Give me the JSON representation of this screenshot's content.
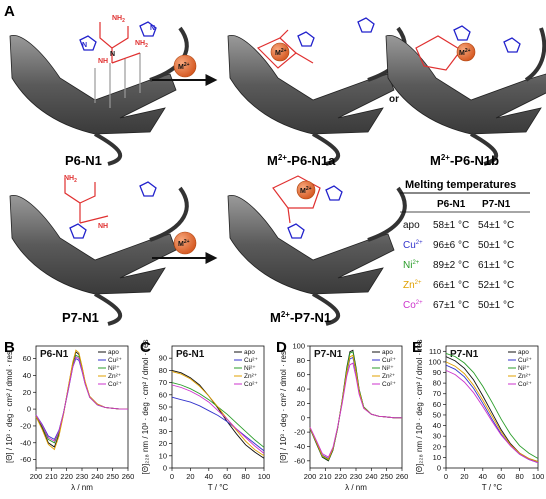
{
  "panels": {
    "A": "A",
    "B": "B",
    "C": "C",
    "D": "D",
    "E": "E"
  },
  "diagram": {
    "reagent_label": "M",
    "reagent_sup": "2+",
    "or_label": "or",
    "compounds": [
      {
        "key": "p6n1",
        "label": "P6-N1",
        "sup": ""
      },
      {
        "key": "m_p6n1a",
        "label": "-P6-N1a",
        "sup": "2+",
        "prefix": "M"
      },
      {
        "key": "m_p6n1b",
        "label": "-P6-N1b",
        "sup": "2+",
        "prefix": "M"
      },
      {
        "key": "p7n1",
        "label": "P7-N1",
        "sup": ""
      },
      {
        "key": "m_p7n1",
        "label": "-P7-N1",
        "sup": "2+",
        "prefix": "M"
      }
    ],
    "atoms": {
      "nh2": "NH",
      "nh2_sub": "2",
      "nh": "NH",
      "n": "N",
      "h2n": "H",
      "h2n_sub": "2",
      "h2n_n": "N",
      "h": "H"
    }
  },
  "melting_table": {
    "title": "Melting temperatures",
    "columns": [
      "",
      "P6-N1",
      "P7-N1"
    ],
    "rows": [
      {
        "label": "apo",
        "ion": "",
        "sup": "",
        "color": "#111111",
        "p6": "58±1 °C",
        "p7": "54±1 °C"
      },
      {
        "label": "Cu",
        "ion": "Cu",
        "sup": "2+",
        "color": "#3333cc",
        "p6": "96±6 °C",
        "p7": "50±1 °C"
      },
      {
        "label": "Ni",
        "ion": "Ni",
        "sup": "2+",
        "color": "#2a9d2a",
        "p6": "89±2 °C",
        "p7": "61±1 °C"
      },
      {
        "label": "Zn",
        "ion": "Zn",
        "sup": "2+",
        "color": "#e0a000",
        "p6": "66±1 °C",
        "p7": "52±1 °C"
      },
      {
        "label": "Co",
        "ion": "Co",
        "sup": "2+",
        "color": "#cc33cc",
        "p6": "67±1 °C",
        "p7": "50±1 °C"
      }
    ]
  },
  "colors": {
    "apo": "#111111",
    "Cu": "#3333cc",
    "Ni": "#2a9d2a",
    "Zn": "#e0a000",
    "Co": "#cc33cc",
    "metal": "#e06a35",
    "amine": "#e03030",
    "imidazole": "#2222cc"
  },
  "chart_data": [
    {
      "id": "B",
      "type": "line",
      "title": "P6-N1",
      "xlabel": "λ / nm",
      "ylabel": "[Θ] / 10³ · deg · cm² / dmol · res",
      "xlim": [
        200,
        260
      ],
      "ylim": [
        -70,
        75
      ],
      "xticks": [
        200,
        210,
        220,
        230,
        240,
        250,
        260
      ],
      "yticks": [
        -60,
        -40,
        -20,
        0,
        20,
        40,
        60
      ],
      "legend": [
        "apo",
        "Cu²⁺",
        "Ni²⁺",
        "Zn²⁺",
        "Co²⁺"
      ],
      "series": [
        {
          "name": "apo",
          "x": [
            200,
            204,
            208,
            212,
            215,
            218,
            221,
            224,
            226,
            228,
            230,
            232,
            235,
            240,
            245,
            250,
            255,
            260
          ],
          "y": [
            -8,
            -22,
            -40,
            -45,
            -30,
            -5,
            25,
            55,
            68,
            65,
            50,
            32,
            15,
            6,
            2,
            1,
            0,
            0
          ]
        },
        {
          "name": "Cu²⁺",
          "x": [
            200,
            204,
            208,
            212,
            215,
            218,
            221,
            224,
            226,
            228,
            230,
            232,
            235,
            240,
            245,
            250,
            255,
            260
          ],
          "y": [
            -7,
            -18,
            -32,
            -36,
            -25,
            -4,
            22,
            50,
            60,
            58,
            45,
            30,
            14,
            5,
            2,
            1,
            0,
            0
          ]
        },
        {
          "name": "Ni²⁺",
          "x": [
            200,
            204,
            208,
            212,
            215,
            218,
            221,
            224,
            226,
            228,
            230,
            232,
            235,
            240,
            245,
            250,
            255,
            260
          ],
          "y": [
            -8,
            -20,
            -36,
            -40,
            -27,
            -4,
            24,
            52,
            64,
            62,
            48,
            31,
            14,
            5,
            2,
            1,
            0,
            0
          ]
        },
        {
          "name": "Zn²⁺",
          "x": [
            200,
            204,
            208,
            212,
            215,
            218,
            221,
            224,
            226,
            228,
            230,
            232,
            235,
            240,
            245,
            250,
            255,
            260
          ],
          "y": [
            -9,
            -24,
            -42,
            -48,
            -32,
            -6,
            26,
            56,
            70,
            67,
            51,
            33,
            15,
            6,
            2,
            1,
            0,
            0
          ]
        },
        {
          "name": "Co²⁺",
          "x": [
            200,
            204,
            208,
            212,
            215,
            218,
            221,
            224,
            226,
            228,
            230,
            232,
            235,
            240,
            245,
            250,
            255,
            260
          ],
          "y": [
            -7,
            -19,
            -34,
            -38,
            -26,
            -4,
            23,
            50,
            62,
            60,
            46,
            30,
            14,
            5,
            2,
            1,
            0,
            0
          ]
        }
      ]
    },
    {
      "id": "C",
      "type": "line",
      "title": "P6-N1",
      "xlabel": "T / °C",
      "ylabel": "[Θ]₂₂₈ nm / 10³ · deg · cm² / dmol · res",
      "xlim": [
        0,
        100
      ],
      "ylim": [
        0,
        100
      ],
      "xticks": [
        0,
        20,
        40,
        60,
        80,
        100
      ],
      "yticks": [
        0,
        10,
        20,
        30,
        40,
        50,
        60,
        70,
        80,
        90
      ],
      "legend": [
        "apo",
        "Cu²⁺",
        "Ni²⁺",
        "Zn²⁺",
        "Co²⁺"
      ],
      "series": [
        {
          "name": "apo",
          "x": [
            0,
            10,
            20,
            30,
            40,
            50,
            60,
            70,
            80,
            90,
            100
          ],
          "y": [
            80,
            78,
            74,
            68,
            59,
            49,
            38,
            28,
            19,
            13,
            8
          ]
        },
        {
          "name": "Cu²⁺",
          "x": [
            0,
            10,
            20,
            30,
            40,
            50,
            60,
            70,
            80,
            90,
            100
          ],
          "y": [
            58,
            56,
            54,
            51,
            47,
            43,
            38,
            32,
            26,
            20,
            14
          ]
        },
        {
          "name": "Ni²⁺",
          "x": [
            0,
            10,
            20,
            30,
            40,
            50,
            60,
            70,
            80,
            90,
            100
          ],
          "y": [
            70,
            68,
            65,
            61,
            56,
            50,
            44,
            37,
            30,
            23,
            17
          ]
        },
        {
          "name": "Zn²⁺",
          "x": [
            0,
            10,
            20,
            30,
            40,
            50,
            60,
            70,
            80,
            90,
            100
          ],
          "y": [
            79,
            77,
            73,
            67,
            59,
            50,
            40,
            31,
            22,
            15,
            10
          ]
        },
        {
          "name": "Co²⁺",
          "x": [
            0,
            10,
            20,
            30,
            40,
            50,
            60,
            70,
            80,
            90,
            100
          ],
          "y": [
            68,
            66,
            63,
            59,
            54,
            47,
            40,
            32,
            25,
            18,
            12
          ]
        }
      ]
    },
    {
      "id": "D",
      "type": "line",
      "title": "P7-N1",
      "xlabel": "λ / nm",
      "ylabel": "[Θ] / 10³ · deg · cm² / dmol · res",
      "xlim": [
        200,
        260
      ],
      "ylim": [
        -70,
        100
      ],
      "xticks": [
        200,
        210,
        220,
        230,
        240,
        250,
        260
      ],
      "yticks": [
        -60,
        -40,
        -20,
        0,
        20,
        40,
        60,
        80,
        100
      ],
      "legend": [
        "apo",
        "Cu²⁺",
        "Ni²⁺",
        "Zn²⁺",
        "Co²⁺"
      ],
      "series": [
        {
          "name": "apo",
          "x": [
            200,
            204,
            208,
            212,
            215,
            218,
            221,
            224,
            226,
            228,
            230,
            232,
            235,
            240,
            245,
            250,
            255,
            260
          ],
          "y": [
            -15,
            -35,
            -55,
            -60,
            -45,
            -15,
            25,
            70,
            92,
            94,
            70,
            40,
            15,
            5,
            2,
            1,
            0,
            0
          ]
        },
        {
          "name": "Cu²⁺",
          "x": [
            200,
            204,
            208,
            212,
            215,
            218,
            221,
            224,
            226,
            228,
            230,
            232,
            235,
            240,
            245,
            250,
            255,
            260
          ],
          "y": [
            -14,
            -33,
            -52,
            -57,
            -43,
            -14,
            22,
            63,
            82,
            84,
            63,
            36,
            14,
            5,
            2,
            1,
            0,
            0
          ]
        },
        {
          "name": "Ni²⁺",
          "x": [
            200,
            204,
            208,
            212,
            215,
            218,
            221,
            224,
            226,
            228,
            230,
            232,
            235,
            240,
            245,
            250,
            255,
            260
          ],
          "y": [
            -15,
            -34,
            -54,
            -59,
            -44,
            -15,
            24,
            68,
            90,
            92,
            68,
            39,
            15,
            5,
            2,
            1,
            0,
            0
          ]
        },
        {
          "name": "Zn²⁺",
          "x": [
            200,
            204,
            208,
            212,
            215,
            218,
            221,
            224,
            226,
            228,
            230,
            232,
            235,
            240,
            245,
            250,
            255,
            260
          ],
          "y": [
            -14,
            -33,
            -53,
            -58,
            -43,
            -14,
            23,
            64,
            85,
            87,
            65,
            37,
            14,
            5,
            2,
            1,
            0,
            0
          ]
        },
        {
          "name": "Co²⁺",
          "x": [
            200,
            204,
            208,
            212,
            215,
            218,
            221,
            224,
            226,
            228,
            230,
            232,
            235,
            240,
            245,
            250,
            255,
            260
          ],
          "y": [
            -13,
            -31,
            -50,
            -55,
            -41,
            -13,
            20,
            58,
            74,
            76,
            57,
            33,
            13,
            5,
            2,
            1,
            0,
            0
          ]
        }
      ]
    },
    {
      "id": "E",
      "type": "line",
      "title": "P7-N1",
      "xlabel": "T / °C",
      "ylabel": "[Θ]₂₂₈ nm / 10³ · deg · cm² / dmol · res",
      "xlim": [
        0,
        100
      ],
      "ylim": [
        0,
        115
      ],
      "xticks": [
        0,
        20,
        40,
        60,
        80,
        100
      ],
      "yticks": [
        0,
        10,
        20,
        30,
        40,
        50,
        60,
        70,
        80,
        90,
        100,
        110
      ],
      "legend": [
        "apo",
        "Cu²⁺",
        "Ni²⁺",
        "Zn²⁺",
        "Co²⁺"
      ],
      "series": [
        {
          "name": "apo",
          "x": [
            0,
            10,
            20,
            30,
            40,
            50,
            60,
            70,
            80,
            90,
            100
          ],
          "y": [
            105,
            101,
            94,
            83,
            68,
            52,
            36,
            23,
            14,
            9,
            6
          ]
        },
        {
          "name": "Cu²⁺",
          "x": [
            0,
            10,
            20,
            30,
            40,
            50,
            60,
            70,
            80,
            90,
            100
          ],
          "y": [
            97,
            93,
            86,
            75,
            61,
            46,
            32,
            21,
            13,
            8,
            5
          ]
        },
        {
          "name": "Ni²⁺",
          "x": [
            0,
            10,
            20,
            30,
            40,
            50,
            60,
            70,
            80,
            90,
            100
          ],
          "y": [
            108,
            105,
            99,
            90,
            77,
            62,
            46,
            32,
            21,
            14,
            9
          ]
        },
        {
          "name": "Zn²⁺",
          "x": [
            0,
            10,
            20,
            30,
            40,
            50,
            60,
            70,
            80,
            90,
            100
          ],
          "y": [
            100,
            96,
            89,
            78,
            64,
            49,
            34,
            22,
            14,
            9,
            6
          ]
        },
        {
          "name": "Co²⁺",
          "x": [
            0,
            10,
            20,
            30,
            40,
            50,
            60,
            70,
            80,
            90,
            100
          ],
          "y": [
            92,
            88,
            81,
            71,
            58,
            44,
            31,
            21,
            13,
            8,
            5
          ]
        }
      ]
    }
  ]
}
